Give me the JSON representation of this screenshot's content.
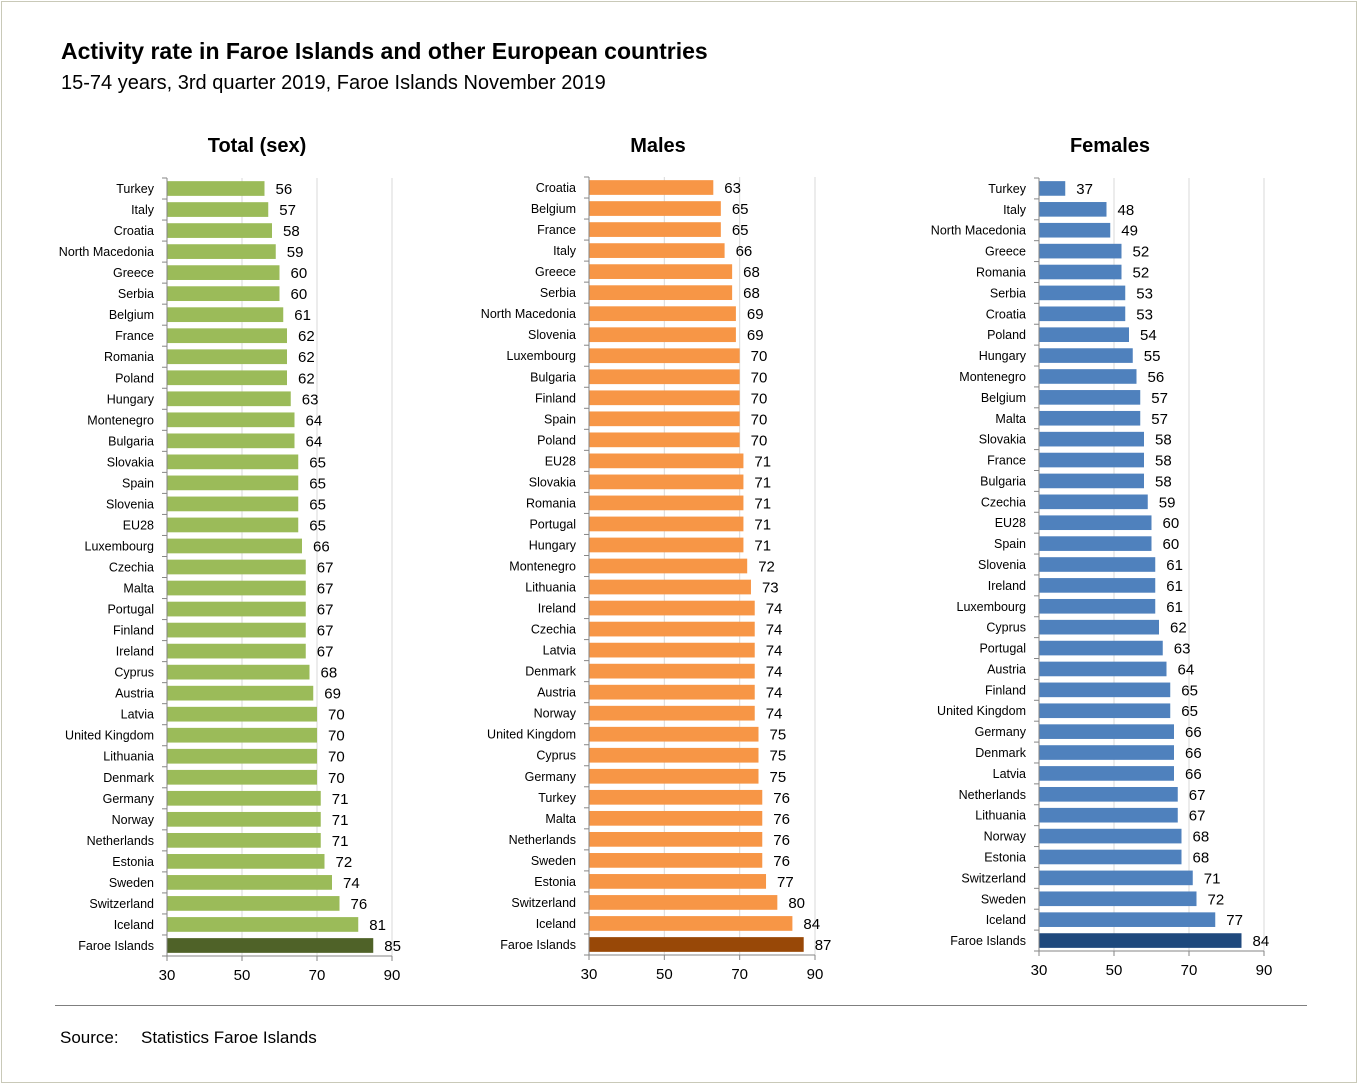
{
  "title": "Activity rate in Faroe Islands and other European countries",
  "subtitle": "15-74 years, 3rd quarter 2019, Faroe Islands November 2019",
  "source_label": "Source:",
  "source_value": "Statistics Faroe Islands",
  "chart_data": [
    {
      "type": "bar",
      "orientation": "horizontal",
      "title": "Total (sex)",
      "color": "#9bbb59",
      "highlight_color": "#4f6228",
      "highlight_category": "Faroe Islands",
      "xlim": [
        30,
        90
      ],
      "xticks": [
        30,
        50,
        70,
        90
      ],
      "categories": [
        "Turkey",
        "Italy",
        "Croatia",
        "North Macedonia",
        "Greece",
        "Serbia",
        "Belgium",
        "France",
        "Romania",
        "Poland",
        "Hungary",
        "Montenegro",
        "Bulgaria",
        "Slovakia",
        "Spain",
        "Slovenia",
        "EU28",
        "Luxembourg",
        "Czechia",
        "Malta",
        "Portugal",
        "Finland",
        "Ireland",
        "Cyprus",
        "Austria",
        "Latvia",
        "United Kingdom",
        "Lithuania",
        "Denmark",
        "Germany",
        "Norway",
        "Netherlands",
        "Estonia",
        "Sweden",
        "Switzerland",
        "Iceland",
        "Faroe Islands"
      ],
      "values": [
        56,
        57,
        58,
        59,
        60,
        60,
        61,
        62,
        62,
        62,
        63,
        64,
        64,
        65,
        65,
        65,
        65,
        66,
        67,
        67,
        67,
        67,
        67,
        68,
        69,
        70,
        70,
        70,
        70,
        71,
        71,
        71,
        72,
        74,
        76,
        81,
        85
      ]
    },
    {
      "type": "bar",
      "orientation": "horizontal",
      "title": "Males",
      "color": "#f79646",
      "highlight_color": "#984807",
      "highlight_category": "Faroe Islands",
      "xlim": [
        30,
        90
      ],
      "xticks": [
        30,
        50,
        70,
        90
      ],
      "categories": [
        "Croatia",
        "Belgium",
        "France",
        "Italy",
        "Greece",
        "Serbia",
        "North Macedonia",
        "Slovenia",
        "Luxembourg",
        "Bulgaria",
        "Finland",
        "Spain",
        "Poland",
        "EU28",
        "Slovakia",
        "Romania",
        "Portugal",
        "Hungary",
        "Montenegro",
        "Lithuania",
        "Ireland",
        "Czechia",
        "Latvia",
        "Denmark",
        "Austria",
        "Norway",
        "United Kingdom",
        "Cyprus",
        "Germany",
        "Turkey",
        "Malta",
        "Netherlands",
        "Sweden",
        "Estonia",
        "Switzerland",
        "Iceland",
        "Faroe Islands"
      ],
      "values": [
        63,
        65,
        65,
        66,
        68,
        68,
        69,
        69,
        70,
        70,
        70,
        70,
        70,
        71,
        71,
        71,
        71,
        71,
        72,
        73,
        74,
        74,
        74,
        74,
        74,
        74,
        75,
        75,
        75,
        76,
        76,
        76,
        76,
        77,
        80,
        84,
        87
      ]
    },
    {
      "type": "bar",
      "orientation": "horizontal",
      "title": "Females",
      "color": "#4f81bd",
      "highlight_color": "#1f497d",
      "highlight_category": "Faroe Islands",
      "xlim": [
        30,
        90
      ],
      "xticks": [
        30,
        50,
        70,
        90
      ],
      "categories": [
        "Turkey",
        "Italy",
        "North Macedonia",
        "Greece",
        "Romania",
        "Serbia",
        "Croatia",
        "Poland",
        "Hungary",
        "Montenegro",
        "Belgium",
        "Malta",
        "Slovakia",
        "France",
        "Bulgaria",
        "Czechia",
        "EU28",
        "Spain",
        "Slovenia",
        "Ireland",
        "Luxembourg",
        "Cyprus",
        "Portugal",
        "Austria",
        "Finland",
        "United Kingdom",
        "Germany",
        "Denmark",
        "Latvia",
        "Netherlands",
        "Lithuania",
        "Norway",
        "Estonia",
        "Switzerland",
        "Sweden",
        "Iceland",
        "Faroe Islands"
      ],
      "values": [
        37,
        48,
        49,
        52,
        52,
        53,
        53,
        54,
        55,
        56,
        57,
        57,
        58,
        58,
        58,
        59,
        60,
        60,
        61,
        61,
        61,
        62,
        63,
        64,
        65,
        65,
        66,
        66,
        66,
        67,
        67,
        68,
        68,
        71,
        72,
        77,
        84
      ]
    }
  ]
}
